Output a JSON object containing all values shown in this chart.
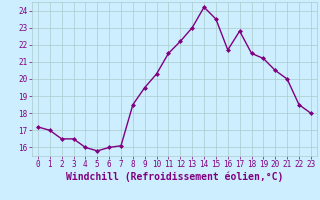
{
  "x": [
    0,
    1,
    2,
    3,
    4,
    5,
    6,
    7,
    8,
    9,
    10,
    11,
    12,
    13,
    14,
    15,
    16,
    17,
    18,
    19,
    20,
    21,
    22,
    23
  ],
  "y": [
    17.2,
    17.0,
    16.5,
    16.5,
    16.0,
    15.8,
    16.0,
    16.1,
    18.5,
    19.5,
    20.3,
    21.5,
    22.2,
    23.0,
    24.2,
    23.5,
    21.7,
    22.8,
    21.5,
    21.2,
    20.5,
    20.0,
    18.5,
    18.0
  ],
  "line_color": "#800080",
  "marker": "D",
  "marker_size": 2.0,
  "bg_color": "#cceeff",
  "grid_color": "#aacccc",
  "xlabel": "Windchill (Refroidissement éolien,°C)",
  "ylim": [
    15.5,
    24.5
  ],
  "xlim": [
    -0.5,
    23.5
  ],
  "yticks": [
    16,
    17,
    18,
    19,
    20,
    21,
    22,
    23,
    24
  ],
  "xticks": [
    0,
    1,
    2,
    3,
    4,
    5,
    6,
    7,
    8,
    9,
    10,
    11,
    12,
    13,
    14,
    15,
    16,
    17,
    18,
    19,
    20,
    21,
    22,
    23
  ],
  "tick_color": "#800080",
  "label_color": "#800080",
  "tick_fontsize": 5.5,
  "xlabel_fontsize": 7.0,
  "linewidth": 1.0
}
